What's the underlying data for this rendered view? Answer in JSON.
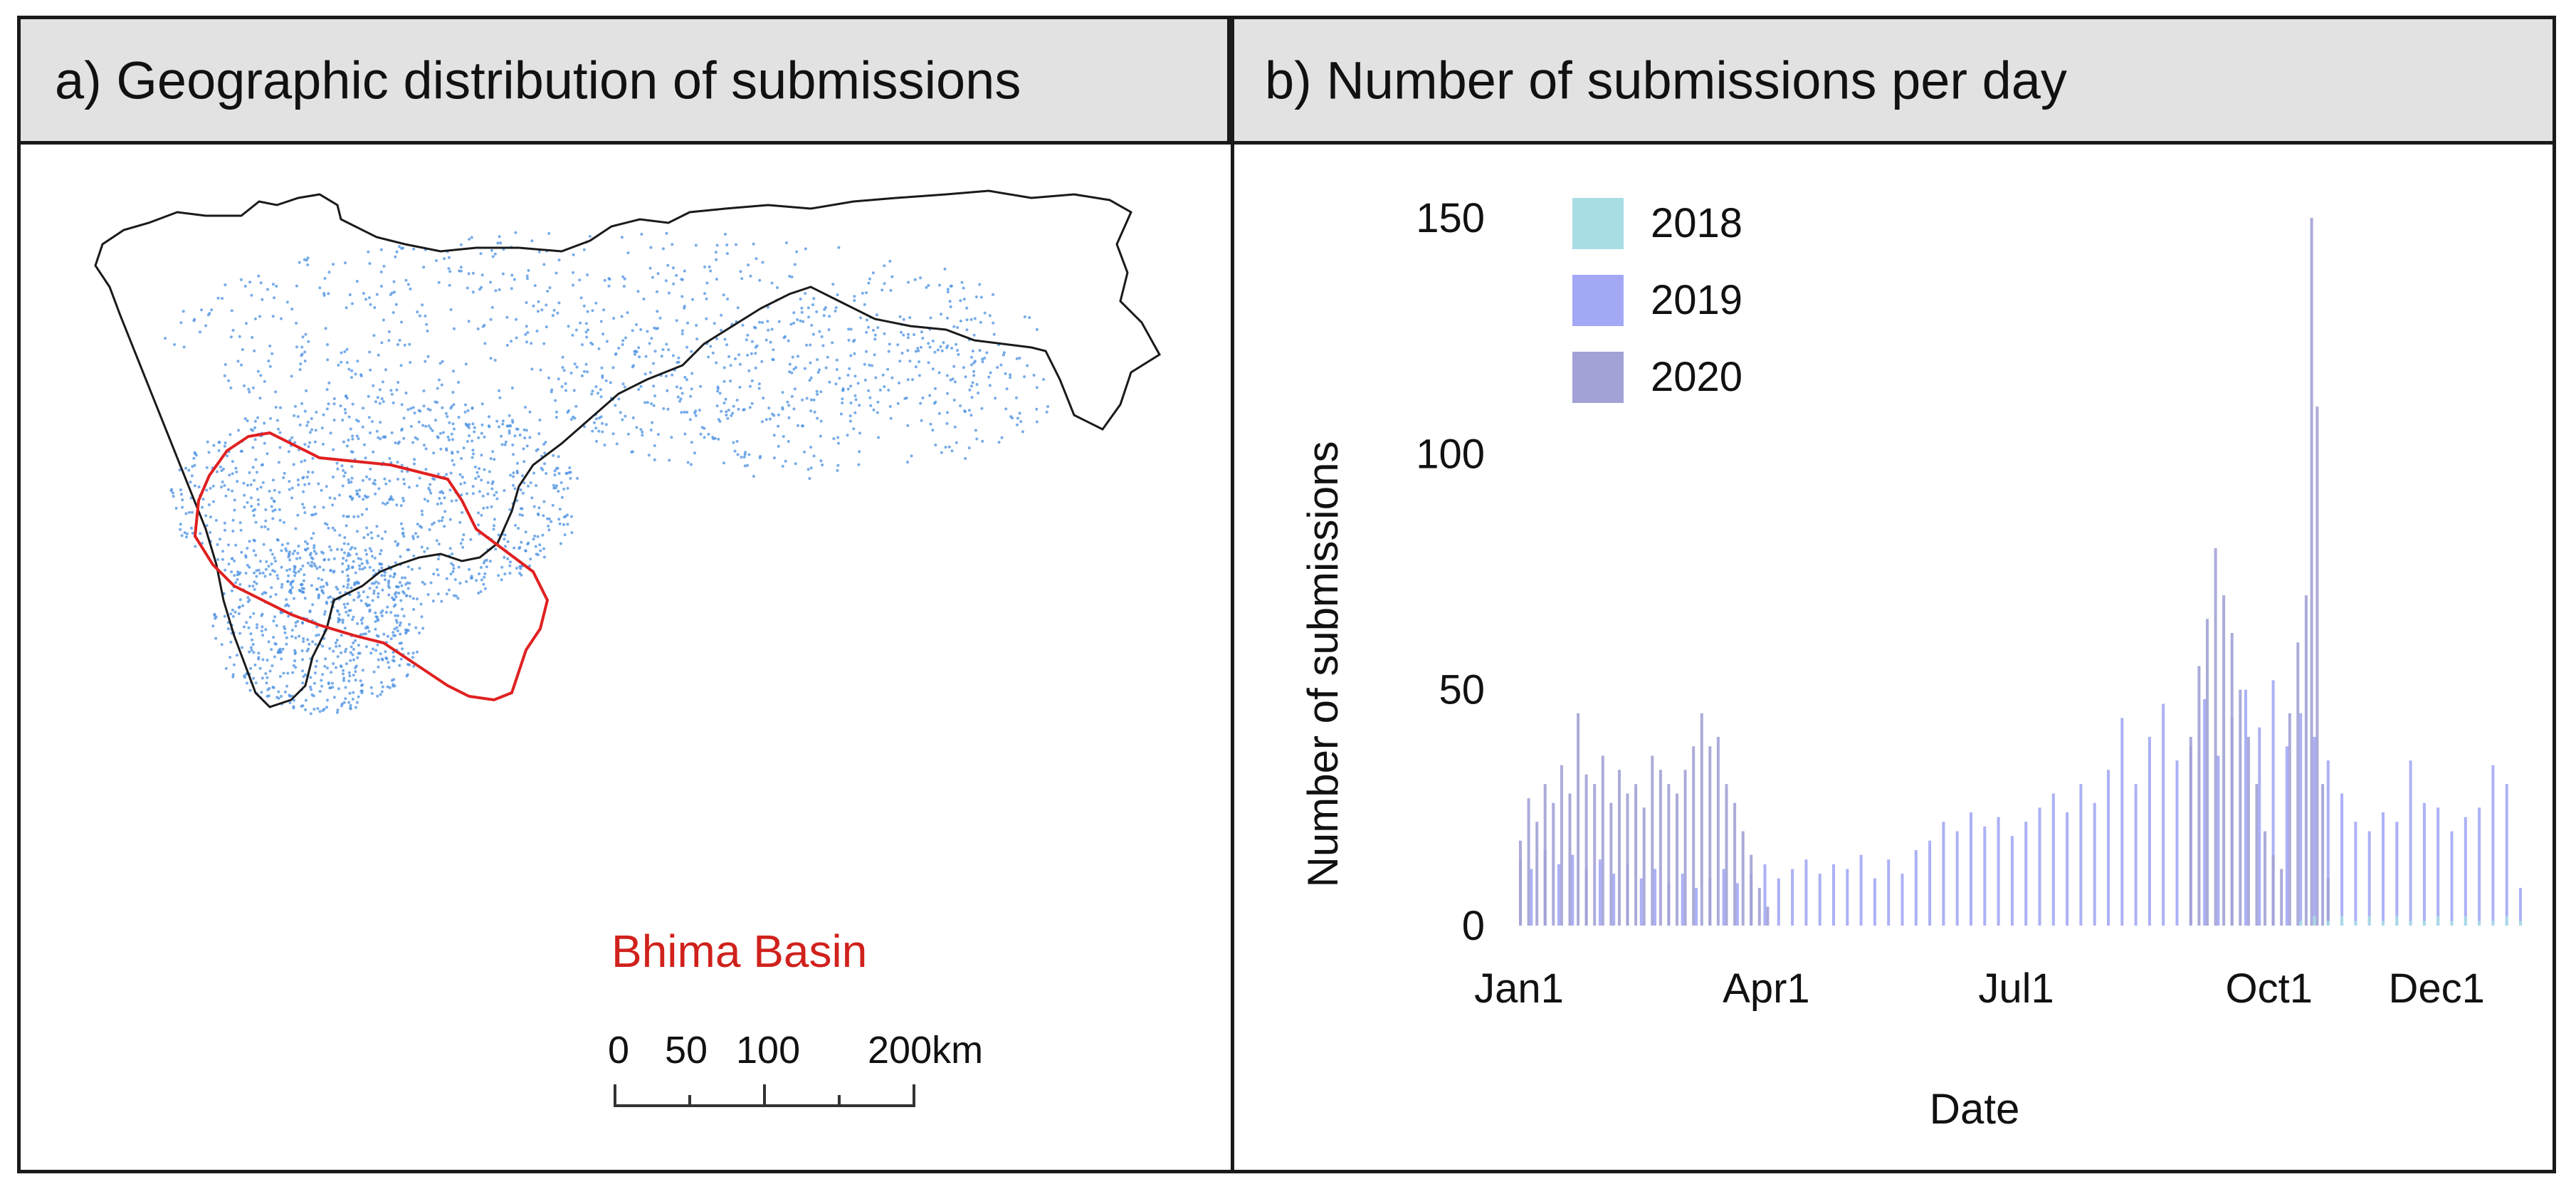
{
  "panel_a": {
    "title": "a) Geographic distribution of submissions",
    "basin_label": "Bhima Basin",
    "scale_labels": [
      "0",
      "50",
      "100",
      "200km"
    ],
    "colors": {
      "outline": "#1a1a1a",
      "points": "#4a90e2",
      "basin": "#e02020",
      "basin_label": "#d0211c"
    }
  },
  "panel_b": {
    "title": "b) Number of submissions per day"
  },
  "chart_data": {
    "type": "bar",
    "title": "b) Number of submissions per day",
    "xlabel": "Date",
    "ylabel": "Number of submissions",
    "ylim": [
      0,
      150
    ],
    "yticks": [
      0,
      50,
      100,
      150
    ],
    "xtick_labels": [
      "Jan1",
      "Apr1",
      "Jul1",
      "Oct1",
      "Dec1"
    ],
    "legend_position": "top-left",
    "grid": false,
    "series": [
      {
        "name": "2018",
        "color": "#a8dde6",
        "points": [
          [
            285,
            1
          ],
          [
            290,
            2
          ],
          [
            295,
            1
          ],
          [
            300,
            2
          ],
          [
            305,
            1
          ],
          [
            310,
            2
          ],
          [
            315,
            1
          ],
          [
            320,
            2
          ],
          [
            325,
            1
          ],
          [
            330,
            1
          ],
          [
            335,
            2
          ],
          [
            340,
            1
          ],
          [
            345,
            2
          ],
          [
            350,
            1
          ],
          [
            355,
            1
          ],
          [
            360,
            2
          ],
          [
            365,
            1
          ]
        ]
      },
      {
        "name": "2019",
        "color": "#a3a8f5",
        "points": [
          [
            1,
            14
          ],
          [
            5,
            12
          ],
          [
            10,
            16
          ],
          [
            15,
            13
          ],
          [
            20,
            15
          ],
          [
            25,
            12
          ],
          [
            30,
            14
          ],
          [
            35,
            11
          ],
          [
            40,
            13
          ],
          [
            45,
            10
          ],
          [
            50,
            12
          ],
          [
            55,
            9
          ],
          [
            60,
            11
          ],
          [
            65,
            8
          ],
          [
            70,
            10
          ],
          [
            75,
            12
          ],
          [
            80,
            9
          ],
          [
            85,
            11
          ],
          [
            90,
            13
          ],
          [
            95,
            10
          ],
          [
            100,
            12
          ],
          [
            105,
            14
          ],
          [
            110,
            11
          ],
          [
            115,
            13
          ],
          [
            120,
            12
          ],
          [
            125,
            15
          ],
          [
            130,
            10
          ],
          [
            135,
            14
          ],
          [
            140,
            11
          ],
          [
            145,
            16
          ],
          [
            150,
            18
          ],
          [
            155,
            22
          ],
          [
            160,
            20
          ],
          [
            165,
            24
          ],
          [
            170,
            21
          ],
          [
            175,
            23
          ],
          [
            180,
            19
          ],
          [
            185,
            22
          ],
          [
            190,
            25
          ],
          [
            195,
            28
          ],
          [
            200,
            24
          ],
          [
            205,
            30
          ],
          [
            210,
            26
          ],
          [
            215,
            33
          ],
          [
            220,
            44
          ],
          [
            225,
            30
          ],
          [
            230,
            40
          ],
          [
            235,
            47
          ],
          [
            240,
            35
          ],
          [
            245,
            38
          ],
          [
            250,
            48
          ],
          [
            255,
            36
          ],
          [
            260,
            44
          ],
          [
            265,
            50
          ],
          [
            270,
            42
          ],
          [
            275,
            52
          ],
          [
            280,
            38
          ],
          [
            285,
            45
          ],
          [
            290,
            40
          ],
          [
            295,
            35
          ],
          [
            300,
            28
          ],
          [
            305,
            22
          ],
          [
            310,
            20
          ],
          [
            315,
            24
          ],
          [
            320,
            22
          ],
          [
            325,
            35
          ],
          [
            330,
            26
          ],
          [
            335,
            25
          ],
          [
            340,
            20
          ],
          [
            345,
            23
          ],
          [
            350,
            25
          ],
          [
            355,
            34
          ],
          [
            360,
            30
          ],
          [
            365,
            8
          ]
        ]
      },
      {
        "name": "2020",
        "color": "#a2a2d6",
        "points": [
          [
            1,
            18
          ],
          [
            4,
            27
          ],
          [
            7,
            22
          ],
          [
            10,
            30
          ],
          [
            13,
            26
          ],
          [
            16,
            34
          ],
          [
            19,
            28
          ],
          [
            22,
            45
          ],
          [
            25,
            32
          ],
          [
            28,
            30
          ],
          [
            31,
            36
          ],
          [
            34,
            26
          ],
          [
            37,
            33
          ],
          [
            40,
            28
          ],
          [
            43,
            30
          ],
          [
            46,
            25
          ],
          [
            49,
            36
          ],
          [
            52,
            33
          ],
          [
            55,
            30
          ],
          [
            58,
            28
          ],
          [
            61,
            33
          ],
          [
            64,
            38
          ],
          [
            67,
            45
          ],
          [
            70,
            38
          ],
          [
            73,
            40
          ],
          [
            76,
            30
          ],
          [
            79,
            26
          ],
          [
            82,
            20
          ],
          [
            85,
            15
          ],
          [
            88,
            8
          ],
          [
            91,
            4
          ],
          [
            245,
            40
          ],
          [
            248,
            55
          ],
          [
            251,
            65
          ],
          [
            254,
            80
          ],
          [
            257,
            70
          ],
          [
            260,
            62
          ],
          [
            263,
            50
          ],
          [
            266,
            40
          ],
          [
            269,
            30
          ],
          [
            272,
            20
          ],
          [
            275,
            15
          ],
          [
            278,
            12
          ],
          [
            281,
            45
          ],
          [
            284,
            60
          ],
          [
            287,
            70
          ],
          [
            289,
            150
          ],
          [
            291,
            110
          ],
          [
            293,
            30
          ],
          [
            295,
            10
          ]
        ]
      }
    ]
  }
}
